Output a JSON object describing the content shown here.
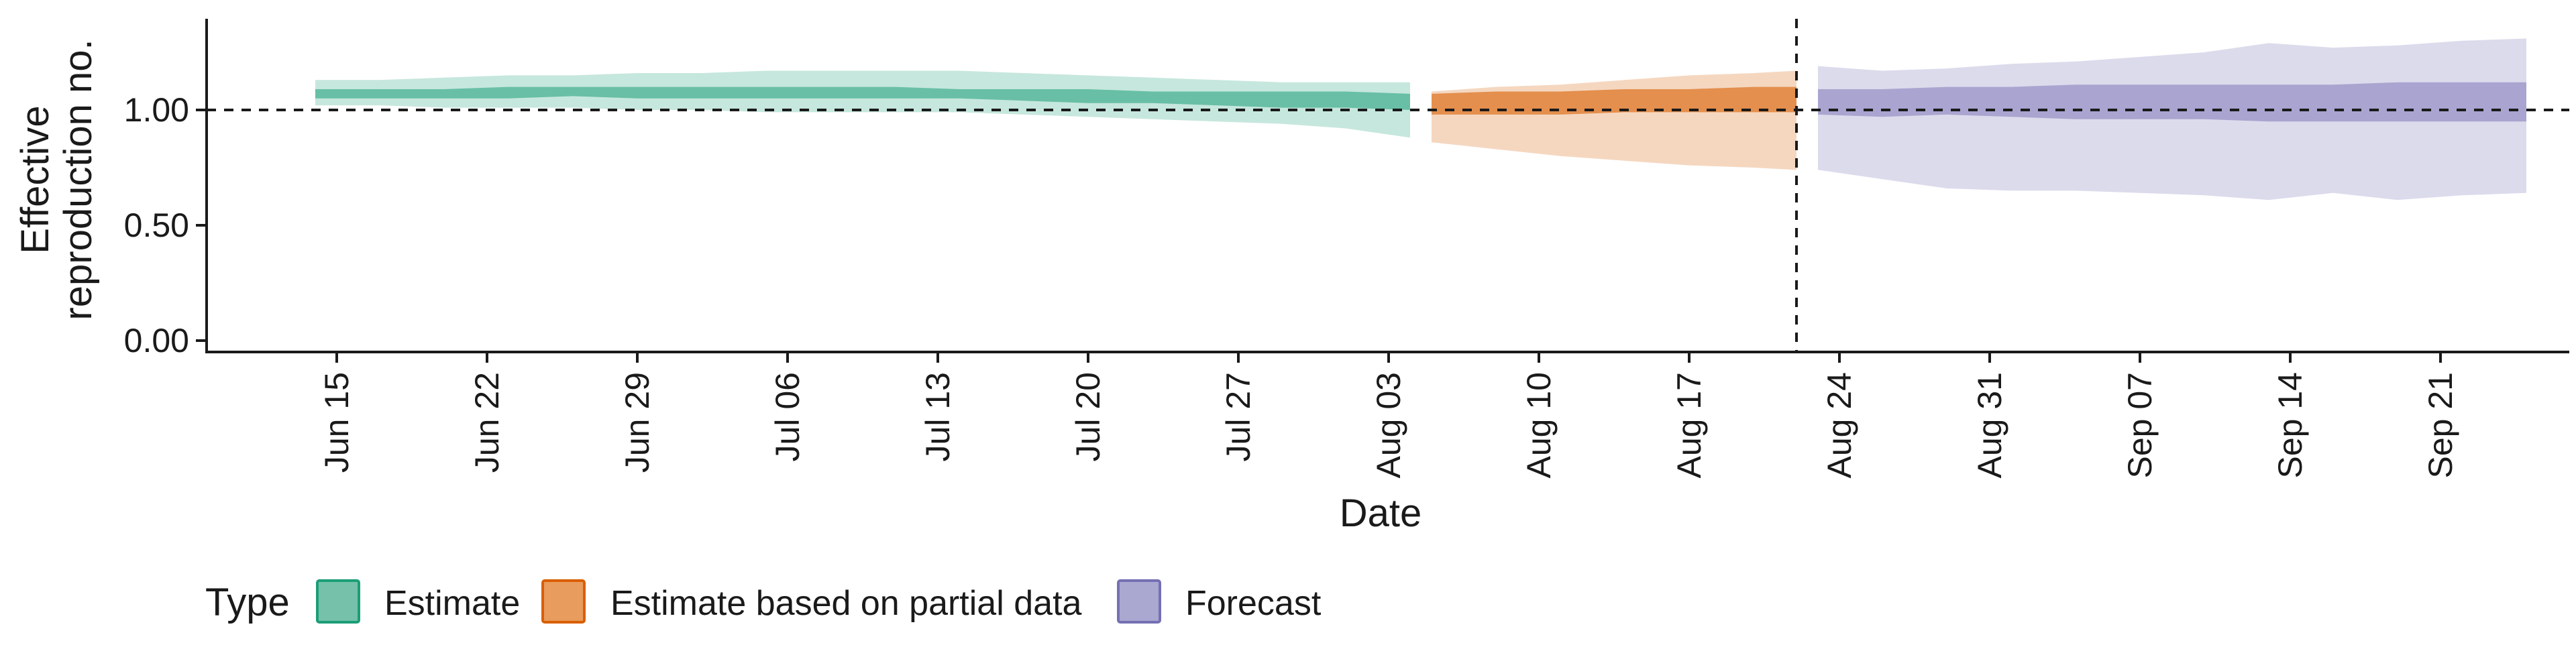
{
  "chart_data": {
    "type": "area",
    "xlabel": "Date",
    "ylabel_lines": [
      "Effective",
      "reproduction no."
    ],
    "ylim": [
      0,
      1.4
    ],
    "yticks": [
      0,
      0.5,
      1.0
    ],
    "ytick_labels": [
      "0.00",
      "0.50",
      "1.00"
    ],
    "x_start_day": -4,
    "x_end_day": 104,
    "xtick_days": [
      0,
      7,
      14,
      21,
      28,
      35,
      42,
      49,
      56,
      63,
      70,
      77,
      84,
      91,
      98
    ],
    "xtick_labels": [
      "Jun 15",
      "Jun 22",
      "Jun 29",
      "Jul 06",
      "Jul 13",
      "Jul 20",
      "Jul 27",
      "Aug 03",
      "Aug 10",
      "Aug 17",
      "Aug 24",
      "Aug 31",
      "Sep 07",
      "Sep 14",
      "Sep 21"
    ],
    "reference_hline": 1.0,
    "forecast_cutoff_day": 68,
    "x_day_zero": "Jun 15",
    "series": [
      {
        "name": "Estimate",
        "color": "#1b9e77",
        "outer_alpha": 0.25,
        "inner_alpha": 0.55,
        "x": [
          -1,
          2,
          5,
          8,
          11,
          14,
          17,
          20,
          23,
          26,
          29,
          32,
          35,
          38,
          41,
          44,
          47,
          50
        ],
        "lower90": [
          1.02,
          1.02,
          1.01,
          1.01,
          1.01,
          1.0,
          1.0,
          0.99,
          0.99,
          0.99,
          0.99,
          0.98,
          0.97,
          0.96,
          0.95,
          0.94,
          0.92,
          0.88
        ],
        "upper90": [
          1.13,
          1.13,
          1.14,
          1.15,
          1.15,
          1.16,
          1.16,
          1.17,
          1.17,
          1.17,
          1.17,
          1.16,
          1.15,
          1.14,
          1.13,
          1.12,
          1.12,
          1.12
        ],
        "lower50": [
          1.05,
          1.05,
          1.05,
          1.05,
          1.06,
          1.05,
          1.05,
          1.05,
          1.05,
          1.05,
          1.05,
          1.04,
          1.03,
          1.03,
          1.02,
          1.01,
          1.01,
          1.0
        ],
        "upper50": [
          1.09,
          1.09,
          1.09,
          1.1,
          1.1,
          1.1,
          1.1,
          1.1,
          1.1,
          1.1,
          1.09,
          1.09,
          1.09,
          1.08,
          1.08,
          1.08,
          1.08,
          1.07
        ]
      },
      {
        "name": "Estimate based on partial data",
        "color": "#d95f02",
        "outer_alpha": 0.25,
        "inner_alpha": 0.6,
        "x": [
          51,
          54,
          57,
          60,
          63,
          66,
          68
        ],
        "lower90": [
          0.86,
          0.83,
          0.8,
          0.78,
          0.76,
          0.75,
          0.74
        ],
        "upper90": [
          1.08,
          1.1,
          1.11,
          1.13,
          1.15,
          1.16,
          1.17
        ],
        "lower50": [
          0.98,
          0.98,
          0.98,
          0.99,
          0.99,
          0.99,
          0.99
        ],
        "upper50": [
          1.07,
          1.08,
          1.08,
          1.09,
          1.09,
          1.1,
          1.1
        ]
      },
      {
        "name": "Forecast",
        "color": "#7570b3",
        "outer_alpha": 0.25,
        "inner_alpha": 0.5,
        "x": [
          69,
          72,
          75,
          78,
          81,
          84,
          87,
          90,
          93,
          96,
          99,
          102
        ],
        "lower90": [
          0.74,
          0.7,
          0.66,
          0.65,
          0.65,
          0.64,
          0.63,
          0.61,
          0.64,
          0.61,
          0.63,
          0.64
        ],
        "upper90": [
          1.19,
          1.17,
          1.18,
          1.2,
          1.21,
          1.23,
          1.25,
          1.29,
          1.27,
          1.28,
          1.3,
          1.31
        ],
        "lower50": [
          0.98,
          0.97,
          0.98,
          0.97,
          0.96,
          0.96,
          0.96,
          0.95,
          0.95,
          0.95,
          0.95,
          0.95
        ],
        "upper50": [
          1.09,
          1.09,
          1.1,
          1.1,
          1.11,
          1.11,
          1.11,
          1.11,
          1.11,
          1.12,
          1.12,
          1.12
        ]
      }
    ]
  },
  "legend": {
    "title": "Type",
    "items": [
      {
        "label": "Estimate",
        "fill": "#75c1aa",
        "stroke": "#1b9e77"
      },
      {
        "label": "Estimate based on partial data",
        "fill": "#e89c5e",
        "stroke": "#d95f02"
      },
      {
        "label": "Forecast",
        "fill": "#aaa7d1",
        "stroke": "#7570b3"
      }
    ]
  }
}
